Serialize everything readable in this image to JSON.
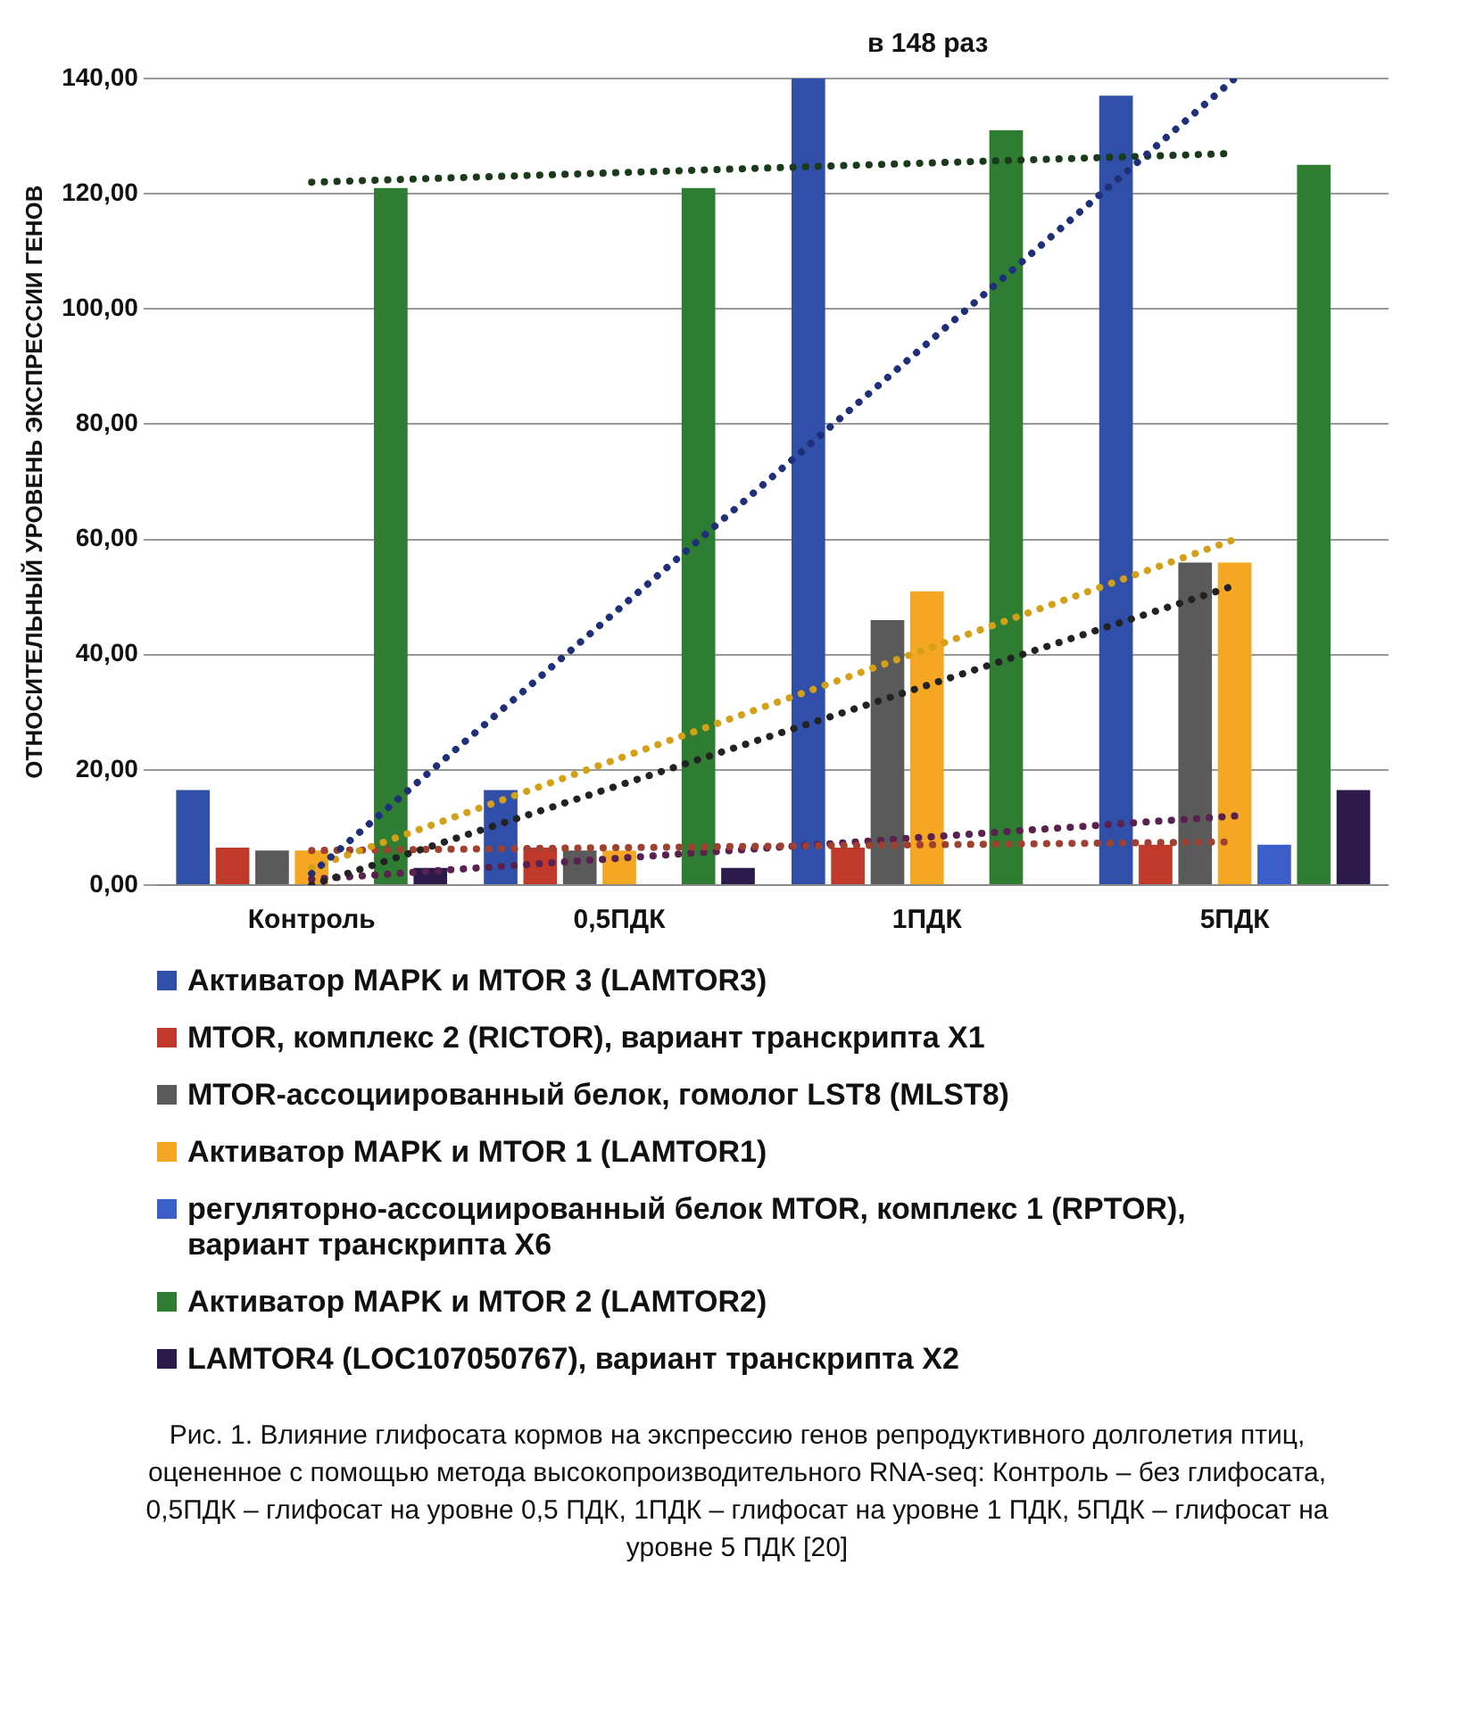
{
  "chart_data": {
    "type": "bar",
    "ylabel": "ОТНОСИТЕЛЬНЫЙ УРОВЕНЬ ЭКСПРЕССИИ ГЕНОВ",
    "categories": [
      "Контроль",
      "0,5ПДК",
      "1ПДК",
      "5ПДК"
    ],
    "series": [
      {
        "name": "Активатор MAPK и MTOR 3 (LAMTOR3)",
        "color": "#2f4fa8",
        "values": [
          16.5,
          16.5,
          140,
          137
        ]
      },
      {
        "name": "MTOR, комплекс 2 (RICTOR), вариант транскрипта X1",
        "color": "#c0392b",
        "values": [
          6.5,
          6.5,
          6.5,
          7
        ]
      },
      {
        "name": "MTOR-ассоциированный белок, гомолог LST8 (MLST8)",
        "color": "#5a5a5a",
        "values": [
          6,
          6,
          46,
          56
        ]
      },
      {
        "name": "Активатор MAPK и MTOR 1 (LAMTOR1)",
        "color": "#f5a623",
        "values": [
          6,
          6,
          51,
          56
        ]
      },
      {
        "name": "регуляторно-ассоциированный белок  MTOR, комплекс 1 (RPTOR), вариант транскрипта X6",
        "color": "#3a5fc8",
        "values": [
          null,
          null,
          null,
          7
        ]
      },
      {
        "name": "Активатор MAPK и MTOR  2 (LAMTOR2)",
        "color": "#2e7d32",
        "values": [
          121,
          121,
          131,
          125
        ]
      },
      {
        "name": "LAMTOR4 (LOC107050767), вариант транскрипта X2",
        "color": "#2c1a4a",
        "values": [
          3,
          3,
          null,
          16.5
        ]
      },
      {
        "type": "line",
        "color": "#1f2f7a",
        "x": [
          "Контроль",
          "5ПДК"
        ],
        "values": [
          2,
          140
        ],
        "line_style": "dotted",
        "marker": "none"
      },
      {
        "type": "line",
        "color": "#1a3a1a",
        "x": [
          "Контроль",
          "5ПДК"
        ],
        "values": [
          122,
          127
        ],
        "line_style": "dotted",
        "marker": "none"
      },
      {
        "type": "line",
        "color": "#222222",
        "x": [
          "Контроль",
          "5ПДК"
        ],
        "values": [
          0,
          52
        ],
        "line_style": "dotted",
        "marker": "none"
      },
      {
        "type": "line",
        "color": "#d4a017",
        "x": [
          "Контроль",
          "5ПДК"
        ],
        "values": [
          3,
          60
        ],
        "line_style": "dotted",
        "marker": "none"
      },
      {
        "type": "line",
        "color": "#a04030",
        "x": [
          "Контроль",
          "5ПДК"
        ],
        "values": [
          6,
          7.5
        ],
        "line_style": "dotted",
        "marker": "none"
      },
      {
        "type": "line",
        "color": "#5a2050",
        "x": [
          "Контроль",
          "5ПДК"
        ],
        "values": [
          1,
          12
        ],
        "line_style": "dotted",
        "marker": "none"
      }
    ],
    "ylim": [
      0,
      140
    ],
    "yticks": [
      {
        "value": 0,
        "label": "0,00"
      },
      {
        "value": 20,
        "label": "20,00"
      },
      {
        "value": 40,
        "label": "40,00"
      },
      {
        "value": 60,
        "label": "60,00"
      },
      {
        "value": 80,
        "label": "80,00"
      },
      {
        "value": 100,
        "label": "100,00"
      },
      {
        "value": 120,
        "label": "120,00"
      },
      {
        "value": 140,
        "label": "140,00"
      }
    ],
    "grid": "y",
    "legend": "bottom",
    "annotations": [
      "в 148 раз",
      "Рис. 1. Влияние глифосата кормов на экспрессию генов репродуктивного долголетия птиц, оцененное с помощью метода высокопроизводительного RNA-seq: Контроль – без глифосата, 0,5ПДК – глифосат на уровне 0,5 ПДК, 1ПДК – глифосат на уровне 1 ПДК, 5ПДК – глифосат на уровне 5 ПДК [20]"
    ]
  }
}
